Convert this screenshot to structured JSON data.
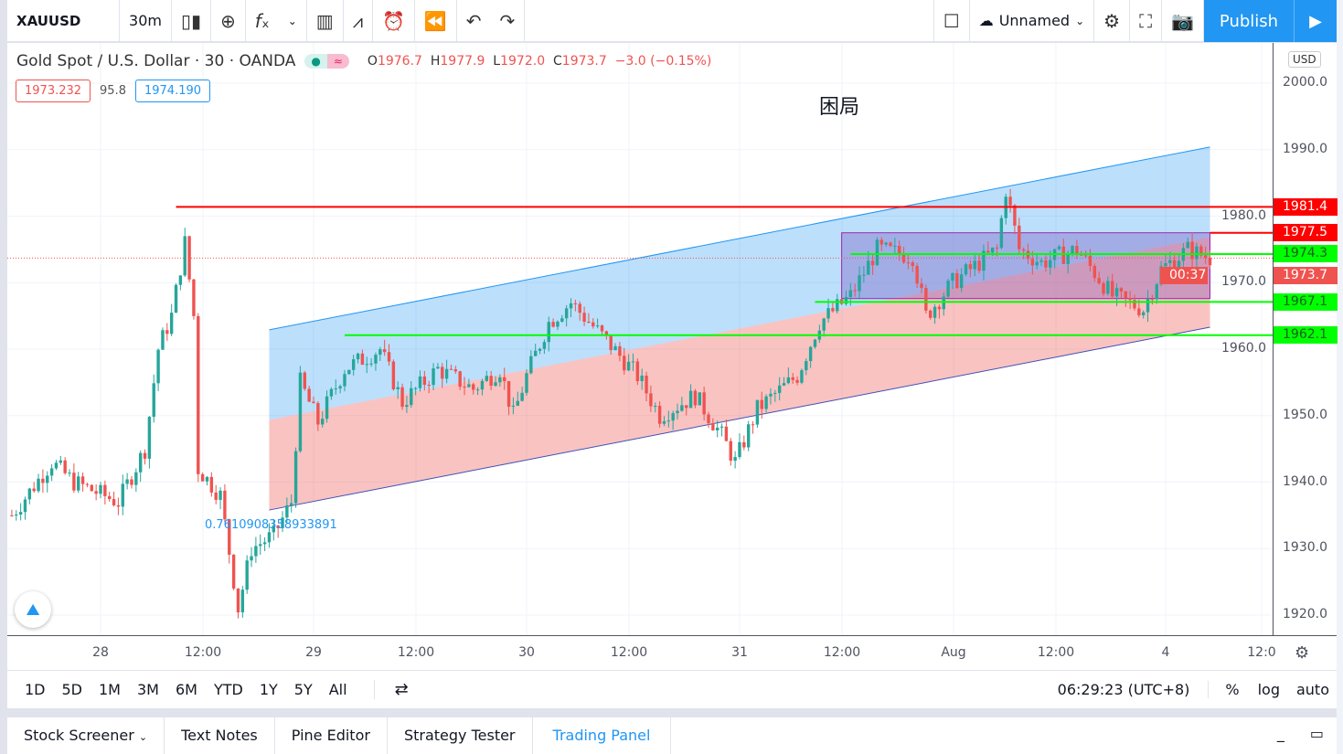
{
  "toolbar": {
    "symbol": "XAUUSD",
    "interval": "30m",
    "layout_name": "Unnamed",
    "publish": "Publish",
    "icons": [
      "candles-icon",
      "add-compare-icon",
      "indicators-icon",
      "chevron-down-icon",
      "financials-icon",
      "templates-icon",
      "alert-icon",
      "replay-icon",
      "undo-icon",
      "redo-icon",
      "fullscreen-box-icon",
      "cloud-icon",
      "gear-icon",
      "fullscreen-icon",
      "camera-icon",
      "play-icon"
    ]
  },
  "legend": {
    "title": "Gold Spot / U.S. Dollar · 30 · OANDA",
    "o_label": "O",
    "o": "1976.7",
    "h_label": "H",
    "h": "1977.9",
    "l_label": "L",
    "l": "1972.0",
    "c_label": "C",
    "c": "1973.7",
    "change": "−3.0 (−0.15%)",
    "bid": "1973.232",
    "spread": "95.8",
    "ask": "1974.190"
  },
  "annotation_text": "困局",
  "fib_label": "0.7610908358933891",
  "currency": "USD",
  "colors": {
    "up": "#26a69a",
    "down": "#ef5350",
    "accent": "#2196f3",
    "red_line": "#ff0000",
    "green_line": "#00ff00"
  },
  "chart_data": {
    "type": "candlestick",
    "y_ticks": [
      "2000.0",
      "1990.0",
      "1980.0",
      "1970.0",
      "1960.0",
      "1950.0",
      "1940.0",
      "1930.0",
      "1920.0"
    ],
    "x_ticks": [
      "28",
      "12:00",
      "29",
      "12:00",
      "30",
      "12:00",
      "31",
      "12:00",
      "Aug",
      "12:00",
      "4",
      "12:0"
    ],
    "price_path": [
      [
        "Jul 27 14:00",
        1935
      ],
      [
        "Jul 27 18:30",
        1943
      ],
      [
        "Jul 27 21:00",
        1940
      ],
      [
        "Jul 28 02:00",
        1937
      ],
      [
        "Jul 28 05:00",
        1945
      ],
      [
        "Jul 28 06:30",
        1960
      ],
      [
        "Jul 28 08:00",
        1965
      ],
      [
        "Jul 28 09:30",
        1976
      ],
      [
        "Jul 28 10:30",
        1965
      ],
      [
        "Jul 28 11:00",
        1942
      ],
      [
        "Jul 28 13:30",
        1938
      ],
      [
        "Jul 28 15:30",
        1921
      ],
      [
        "Jul 28 17:00",
        1930
      ],
      [
        "Jul 28 19:30",
        1932
      ],
      [
        "Jul 28 21:30",
        1937
      ],
      [
        "Jul 28 22:30",
        1955
      ],
      [
        "Jul 29 00:30",
        1949
      ],
      [
        "Jul 29 03:30",
        1957
      ],
      [
        "Jul 29 07:30",
        1960
      ],
      [
        "Jul 29 10:00",
        1952
      ],
      [
        "Jul 29 14:00",
        1957
      ],
      [
        "Jul 29 18:00",
        1954
      ],
      [
        "Jul 29 21:00",
        1957
      ],
      [
        "Jul 29 22:30",
        1950
      ],
      [
        "Jul 30 00:00",
        1956
      ],
      [
        "Jul 30 02:30",
        1964
      ],
      [
        "Jul 30 05:00",
        1967
      ],
      [
        "Jul 30 08:30",
        1962
      ],
      [
        "Jul 30 12:30",
        1956
      ],
      [
        "Jul 30 15:00",
        1950
      ],
      [
        "Jul 30 19:00",
        1953
      ],
      [
        "Jul 30 22:00",
        1947
      ],
      [
        "Jul 30 23:30",
        1943
      ],
      [
        "Jul 31 02:00",
        1951
      ],
      [
        "Jul 31 06:30",
        1956
      ],
      [
        "Jul 31 09:00",
        1964
      ],
      [
        "Jul 31 12:30",
        1968
      ],
      [
        "Jul 31 15:30",
        1975
      ],
      [
        "Jul 31 19:30",
        1974
      ],
      [
        "Jul 31 21:00",
        1965
      ],
      [
        "Aug 3 00:00",
        1970
      ],
      [
        "Aug 3 05:00",
        1975
      ],
      [
        "Aug 3 06:00",
        1984
      ],
      [
        "Aug 3 07:30",
        1975
      ],
      [
        "Aug 3 10:00",
        1973
      ],
      [
        "Aug 3 14:00",
        1975
      ],
      [
        "Aug 3 18:00",
        1968
      ],
      [
        "Aug 3 21:30",
        1966
      ],
      [
        "Aug 3 23:30",
        1972
      ],
      [
        "Aug 4 02:30",
        1975
      ],
      [
        "Aug 4 05:00",
        1973.7
      ]
    ],
    "horizontal_lines": [
      {
        "price": "1981.4",
        "from": "Jul 28 08:30",
        "color": "#ff0000"
      },
      {
        "price": "1977.5",
        "from": "Aug 4 05:00",
        "color": "#ff0000"
      },
      {
        "price": "1974.3",
        "from": "Jul 31 12:30",
        "color": "#00ff00"
      },
      {
        "price": "1967.1",
        "from": "Jul 31 08:30",
        "color": "#00ff00"
      },
      {
        "price": "1962.1",
        "from": "Jul 29 03:30",
        "color": "#00ff00"
      }
    ],
    "last_price": "1973.7",
    "countdown": "00:37",
    "channel": {
      "from": "Jul 28 19:00",
      "to": "Aug 4 05:00",
      "upper": [
        1962.9,
        1990.4
      ],
      "lower": [
        1935.8,
        1963.3
      ]
    },
    "rectangle": {
      "from": "Jul 31 11:30",
      "to": "Aug 4 05:00",
      "top": 1977.5,
      "bottom": 1967.6
    }
  },
  "bottom": {
    "ranges": [
      "1D",
      "5D",
      "1M",
      "3M",
      "6M",
      "YTD",
      "1Y",
      "5Y",
      "All"
    ],
    "clock": "06:29:23 (UTC+8)",
    "percent": "%",
    "log": "log",
    "auto": "auto"
  },
  "tabs": [
    "Stock Screener",
    "Text Notes",
    "Pine Editor",
    "Strategy Tester",
    "Trading Panel"
  ]
}
